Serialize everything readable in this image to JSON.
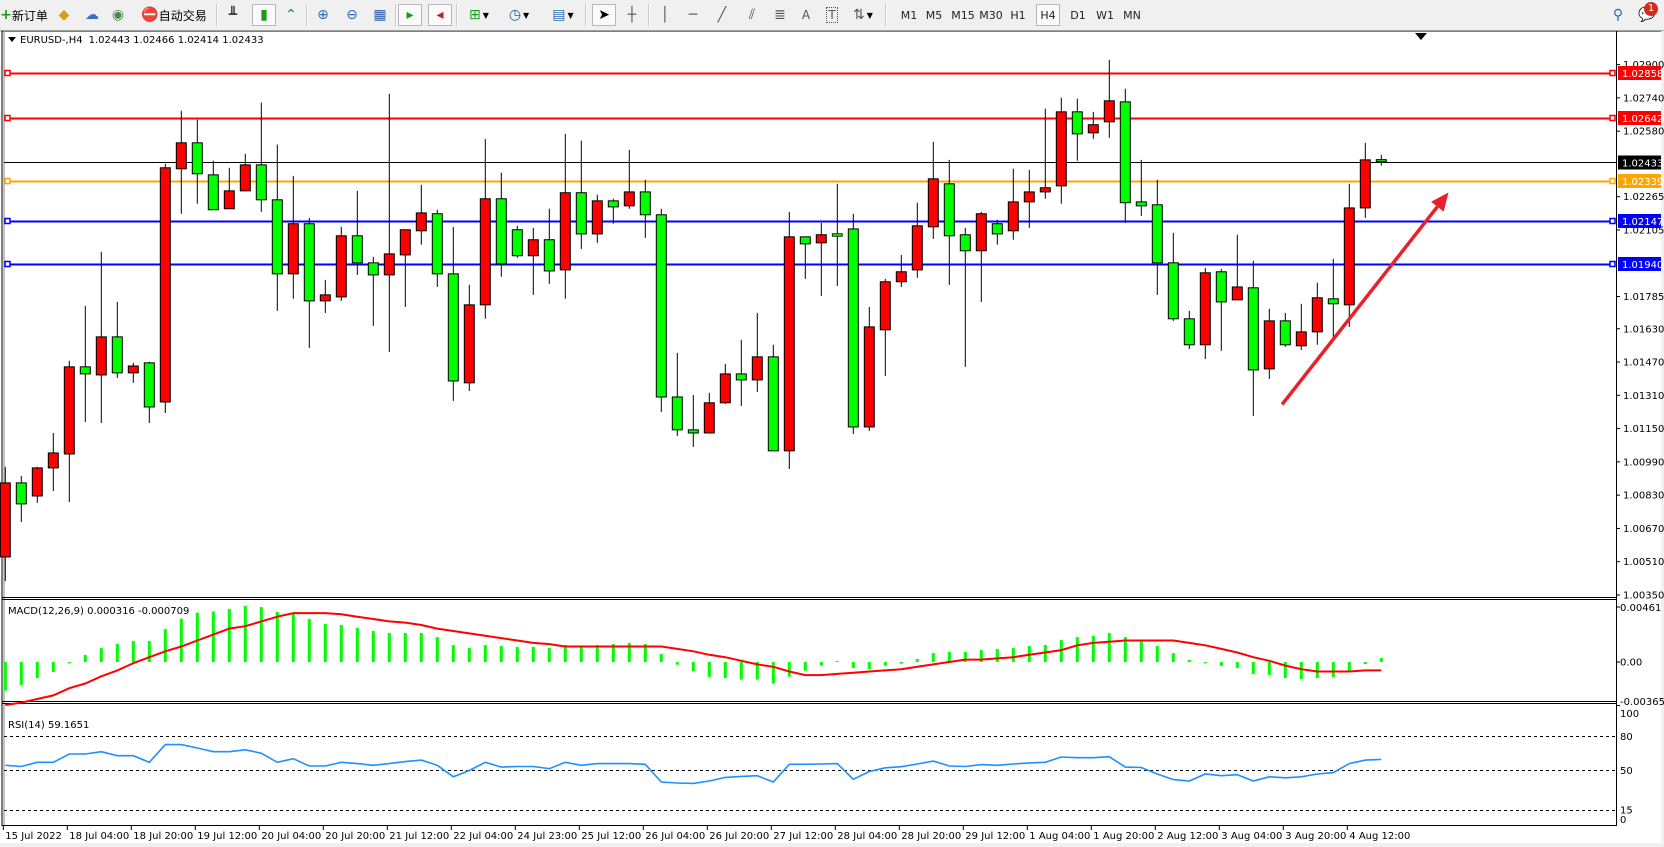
{
  "toolbar": {
    "new_order_label": "新订单",
    "auto_trading_label": "自动交易",
    "timeframes": [
      "M1",
      "M5",
      "M15",
      "M30",
      "H1",
      "H4",
      "D1",
      "W1",
      "MN"
    ],
    "selected_timeframe": "H4",
    "notification_count": "1",
    "icons": [
      "new-order-icon",
      "gold-icon",
      "history-icon",
      "signals-icon",
      "auto-trading-icon",
      "bar-chart-icon",
      "candlestick-icon",
      "line-chart-icon",
      "zoom-in-icon",
      "zoom-out-icon",
      "tile-windows-icon",
      "autoscroll-icon",
      "chart-shift-icon",
      "indicators-icon",
      "periodicity-icon",
      "templates-icon",
      "cursor-icon",
      "crosshair-icon",
      "vertical-line-icon",
      "horizontal-line-icon",
      "trendline-icon",
      "equidistant-channel-icon",
      "fibonacci-icon",
      "text-icon",
      "text-label-icon",
      "arrows-icon",
      "search-icon",
      "notifications-icon"
    ]
  },
  "chart_header": {
    "symbol": "EURUSD-,H4",
    "ohlc": "1.02443 1.02466 1.02414 1.02433"
  },
  "macd_header": "MACD(12,26,9) 0.000316 -0.000709",
  "rsi_header": "RSI(14) 59.1651",
  "chart_data": {
    "type": "candlestick",
    "colors": {
      "bull": "#ff0000",
      "bear": "#00ff00",
      "outline": "#000000",
      "macd_hist": "#00ff00",
      "macd_signal": "#ff0000",
      "rsi": "#1e90ff"
    },
    "price_axis_labels": [
      "1.02900",
      "1.02740",
      "1.02580",
      "1.02265",
      "1.02105",
      "1.01785",
      "1.01630",
      "1.01470",
      "1.01310",
      "1.01150",
      "1.00990",
      "1.00830",
      "1.00670",
      "1.00510",
      "1.00350"
    ],
    "time_labels": [
      "15 Jul 2022",
      "18 Jul 04:00",
      "18 Jul 20:00",
      "19 Jul 12:00",
      "20 Jul 04:00",
      "20 Jul 20:00",
      "21 Jul 12:00",
      "22 Jul 04:00",
      "24 Jul 23:00",
      "25 Jul 12:00",
      "26 Jul 04:00",
      "26 Jul 20:00",
      "27 Jul 12:00",
      "28 Jul 04:00",
      "28 Jul 20:00",
      "29 Jul 12:00",
      "1 Aug 04:00",
      "1 Aug 20:00",
      "2 Aug 12:00",
      "3 Aug 04:00",
      "3 Aug 20:00",
      "4 Aug 12:00"
    ],
    "candles_ohlc": [
      [
        1.00533,
        1.00966,
        1.00417,
        1.00889
      ],
      [
        1.00889,
        1.00922,
        1.00701,
        1.00788
      ],
      [
        1.00826,
        1.00966,
        1.00793,
        1.00961
      ],
      [
        1.00961,
        1.01129,
        1.0085,
        1.01033
      ],
      [
        1.01028,
        1.01476,
        1.00797,
        1.01447
      ],
      [
        1.01447,
        1.0174,
        1.01182,
        1.01413
      ],
      [
        1.01408,
        1.02,
        1.01177,
        1.01591
      ],
      [
        1.01591,
        1.01759,
        1.01394,
        1.01418
      ],
      [
        1.01418,
        1.01466,
        1.0137,
        1.01451
      ],
      [
        1.01466,
        1.01471,
        1.01177,
        1.01254
      ],
      [
        1.01278,
        1.02423,
        1.01225,
        1.02404
      ],
      [
        1.02399,
        1.02678,
        1.02183,
        1.02524
      ],
      [
        1.02524,
        1.02635,
        1.02231,
        1.02375
      ],
      [
        1.0237,
        1.02438,
        1.02202,
        1.02202
      ],
      [
        1.02207,
        1.02404,
        1.02207,
        1.02293
      ],
      [
        1.02293,
        1.02471,
        1.02293,
        1.02418
      ],
      [
        1.02418,
        1.02717,
        1.02192,
        1.0225
      ],
      [
        1.0225,
        1.02515,
        1.01716,
        1.01894
      ],
      [
        1.01894,
        1.02365,
        1.01774,
        1.02135
      ],
      [
        1.02135,
        1.02163,
        1.01538,
        1.01764
      ],
      [
        1.01764,
        1.01865,
        1.01706,
        1.01793
      ],
      [
        1.01783,
        1.0212,
        1.01764,
        1.02077
      ],
      [
        1.02077,
        1.02293,
        1.01889,
        1.01947
      ],
      [
        1.01947,
        1.01976,
        1.01644,
        1.01889
      ],
      [
        1.01889,
        1.0276,
        1.01519,
        1.0199
      ],
      [
        1.01985,
        1.02106,
        1.01735,
        1.02106
      ],
      [
        1.02101,
        1.02322,
        1.02034,
        1.02187
      ],
      [
        1.02183,
        1.02202,
        1.01831,
        1.01894
      ],
      [
        1.01894,
        1.0212,
        1.01283,
        1.01379
      ],
      [
        1.0137,
        1.01841,
        1.01331,
        1.01745
      ],
      [
        1.01745,
        1.02543,
        1.01678,
        1.02255
      ],
      [
        1.02255,
        1.0238,
        1.0188,
        1.01942
      ],
      [
        1.02106,
        1.02125,
        1.01971,
        1.01981
      ],
      [
        1.01981,
        1.02115,
        1.01793,
        1.02058
      ],
      [
        1.02058,
        1.02207,
        1.01846,
        1.01908
      ],
      [
        1.01913,
        1.02567,
        1.01774,
        1.02284
      ],
      [
        1.02284,
        1.02534,
        1.02014,
        1.02086
      ],
      [
        1.02086,
        1.02274,
        1.02043,
        1.02245
      ],
      [
        1.02245,
        1.02255,
        1.02135,
        1.02216
      ],
      [
        1.02221,
        1.0249,
        1.02207,
        1.02288
      ],
      [
        1.02288,
        1.02346,
        1.02067,
        1.02178
      ],
      [
        1.02178,
        1.02207,
        1.0123,
        1.01302
      ],
      [
        1.01302,
        1.01514,
        1.01115,
        1.01144
      ],
      [
        1.01144,
        1.01312,
        1.01062,
        1.01129
      ],
      [
        1.01129,
        1.01322,
        1.01129,
        1.01274
      ],
      [
        1.01274,
        1.01461,
        1.01269,
        1.01413
      ],
      [
        1.01413,
        1.01577,
        1.01259,
        1.01384
      ],
      [
        1.01384,
        1.01706,
        1.01326,
        1.01495
      ],
      [
        1.01495,
        1.01553,
        1.01043,
        1.01043
      ],
      [
        1.01043,
        1.02192,
        1.00956,
        1.02072
      ],
      [
        1.02072,
        1.02072,
        1.0187,
        1.02038
      ],
      [
        1.02043,
        1.02139,
        1.01788,
        1.02082
      ],
      [
        1.02082,
        1.02327,
        1.01836,
        1.0208
      ],
      [
        1.0211,
        1.02183,
        1.01124,
        1.01158
      ],
      [
        1.01158,
        1.01735,
        1.01139,
        1.01639
      ],
      [
        1.01625,
        1.0187,
        1.01403,
        1.01856
      ],
      [
        1.01856,
        1.01985,
        1.01831,
        1.01904
      ],
      [
        1.01913,
        1.02236,
        1.01875,
        1.02125
      ],
      [
        1.0212,
        1.02529,
        1.02062,
        1.02351
      ],
      [
        1.02327,
        1.02442,
        1.01841,
        1.02077
      ],
      [
        1.02082,
        1.02115,
        1.01447,
        1.02005
      ],
      [
        1.02005,
        1.02192,
        1.01759,
        1.02183
      ],
      [
        1.02135,
        1.02154,
        1.02034,
        1.02086
      ],
      [
        1.02101,
        1.02399,
        1.02058,
        1.0224
      ],
      [
        1.0224,
        1.02394,
        1.02115,
        1.02288
      ],
      [
        1.02288,
        1.02688,
        1.02255,
        1.02308
      ],
      [
        1.02317,
        1.02741,
        1.02231,
        1.02673
      ],
      [
        1.02673,
        1.02736,
        1.02438,
        1.02567
      ],
      [
        1.02572,
        1.02673,
        1.02543,
        1.02611
      ],
      [
        1.02625,
        1.02923,
        1.02548,
        1.02726
      ],
      [
        1.02721,
        1.02784,
        1.02139,
        1.02236
      ],
      [
        1.0224,
        1.02442,
        1.02173,
        1.02221
      ],
      [
        1.02226,
        1.02346,
        1.01793,
        1.01947
      ],
      [
        1.01947,
        1.02091,
        1.01668,
        1.01678
      ],
      [
        1.01678,
        1.01716,
        1.01533,
        1.01553
      ],
      [
        1.01553,
        1.01923,
        1.01485,
        1.01899
      ],
      [
        1.01904,
        1.01918,
        1.01524,
        1.01759
      ],
      [
        1.01769,
        1.02082,
        1.01769,
        1.01831
      ],
      [
        1.01827,
        1.01957,
        1.01211,
        1.01432
      ],
      [
        1.01437,
        1.01726,
        1.01389,
        1.01668
      ],
      [
        1.01668,
        1.01706,
        1.01543,
        1.01553
      ],
      [
        1.01548,
        1.0175,
        1.01528,
        1.01615
      ],
      [
        1.01615,
        1.01851,
        1.01553,
        1.01779
      ],
      [
        1.01774,
        1.01966,
        1.01586,
        1.0175
      ],
      [
        1.01745,
        1.02327,
        1.01639,
        1.02211
      ],
      [
        1.02211,
        1.02524,
        1.02163,
        1.02442
      ],
      [
        1.02443,
        1.02466,
        1.02414,
        1.02433
      ]
    ],
    "current_price": {
      "value": 1.02433,
      "label": "1.02433",
      "color": "#000000"
    },
    "levels": [
      {
        "value": 1.02858,
        "label": "1.02858",
        "color": "#ff0000"
      },
      {
        "value": 1.02642,
        "label": "1.02642",
        "color": "#ff0000"
      },
      {
        "value": 1.02339,
        "label": "1.02339",
        "color": "#ffa500"
      },
      {
        "value": 1.02147,
        "label": "1.02147",
        "color": "#0000ff"
      },
      {
        "value": 1.0194,
        "label": "1.01940",
        "color": "#0000ff"
      }
    ],
    "annotation_arrow": {
      "from": {
        "bar": 79.8,
        "price": 1.01266
      },
      "to": {
        "bar": 90.2,
        "price": 1.02285
      },
      "color": "#e8202a"
    },
    "macd": {
      "axis_labels": {
        "max": "0.00461",
        "zero": "0.00",
        "min": "-0.003652"
      },
      "range": [
        -0.003652,
        0.00461
      ],
      "histogram": [
        -0.0024,
        -0.00195,
        -0.00134,
        -0.00084,
        -0.0001,
        0.00059,
        0.00117,
        0.00151,
        0.00176,
        0.00176,
        0.00276,
        0.00363,
        0.00413,
        0.00424,
        0.00444,
        0.00469,
        0.0046,
        0.00419,
        0.00402,
        0.0036,
        0.00318,
        0.0031,
        0.00285,
        0.0026,
        0.00243,
        0.00243,
        0.00243,
        0.00209,
        0.00142,
        0.00117,
        0.00142,
        0.00134,
        0.00126,
        0.00126,
        0.00117,
        0.00142,
        0.00134,
        0.00142,
        0.00151,
        0.00159,
        0.00151,
        0.00067,
        -0.00022,
        -0.00078,
        -0.00126,
        -0.00134,
        -0.00148,
        -0.00148,
        -0.00181,
        -0.00123,
        -0.00073,
        -0.00031,
        8e-05,
        -0.0005,
        -0.00059,
        -0.00031,
        -0.00014,
        0.00025,
        0.00075,
        0.00084,
        0.00084,
        0.001,
        0.00109,
        0.00117,
        0.00134,
        0.00142,
        0.00184,
        0.00209,
        0.00218,
        0.00243,
        0.00209,
        0.00176,
        0.00134,
        0.00075,
        0.00017,
        -3e-05,
        -0.00033,
        -0.0005,
        -0.001,
        -0.00109,
        -0.00134,
        -0.00142,
        -0.00134,
        -0.00126,
        -0.00073,
        -0.00017,
        0.00033
      ],
      "signal": [
        -0.0036,
        -0.0034,
        -0.0031,
        -0.0028,
        -0.0022,
        -0.0018,
        -0.0012,
        -0.0007,
        -0.0001,
        0.0004,
        0.0009,
        0.0013,
        0.0018,
        0.0023,
        0.0028,
        0.003,
        0.0034,
        0.0038,
        0.0041,
        0.0041,
        0.0041,
        0.004,
        0.0038,
        0.0036,
        0.0034,
        0.0033,
        0.0031,
        0.0028,
        0.0026,
        0.0024,
        0.0022,
        0.002,
        0.0018,
        0.0016,
        0.0015,
        0.0013,
        0.0013,
        0.0013,
        0.0013,
        0.0013,
        0.0013,
        0.0013,
        0.0011,
        0.0009,
        0.0006,
        0.0004,
        0.0001,
        -0.0002,
        -0.0004,
        -0.0008,
        -0.0011,
        -0.0011,
        -0.001,
        -0.0009,
        -0.0008,
        -0.0007,
        -0.0006,
        -0.0004,
        -0.0002,
        0,
        0.0002,
        0.0002,
        0.0003,
        0.0004,
        0.0006,
        0.0008,
        0.001,
        0.0014,
        0.0016,
        0.0017,
        0.0018,
        0.0018,
        0.0018,
        0.0018,
        0.0016,
        0.0014,
        0.0011,
        0.0008,
        0.0004,
        0.0001,
        -0.0003,
        -0.0006,
        -0.0008,
        -0.0008,
        -0.0008,
        -0.0007,
        -0.0007
      ]
    },
    "rsi": {
      "axis_labels": [
        "100",
        "80",
        "50",
        "15",
        "0"
      ],
      "levels": [
        80,
        50,
        15
      ],
      "range": [
        0,
        100
      ],
      "values": [
        54,
        53,
        56.7,
        56.7,
        64,
        64,
        66,
        62.5,
        62.5,
        56.7,
        72.3,
        72.3,
        69.3,
        66,
        66,
        67.7,
        64.7,
        56.7,
        59.8,
        53.4,
        53.4,
        56.7,
        55.5,
        54,
        55.5,
        57.3,
        58.6,
        54,
        43.9,
        49.4,
        56.7,
        52.4,
        53,
        53,
        51,
        56.7,
        54,
        55.5,
        55.5,
        55.5,
        54.9,
        39.3,
        38.4,
        38,
        40.2,
        43.3,
        44.2,
        44.8,
        39.3,
        54.9,
        54.9,
        55.2,
        55.5,
        41.7,
        48.5,
        51.8,
        52.8,
        55.2,
        57.7,
        53.4,
        53,
        54.6,
        54,
        55.2,
        56.1,
        56.7,
        61.3,
        60.7,
        60.7,
        61.6,
        52.4,
        52.1,
        46.3,
        41.4,
        40.2,
        46.3,
        44.8,
        45.7,
        40.2,
        43.9,
        43,
        43.9,
        46.3,
        47.6,
        55.5,
        58.6,
        59.2
      ]
    }
  }
}
